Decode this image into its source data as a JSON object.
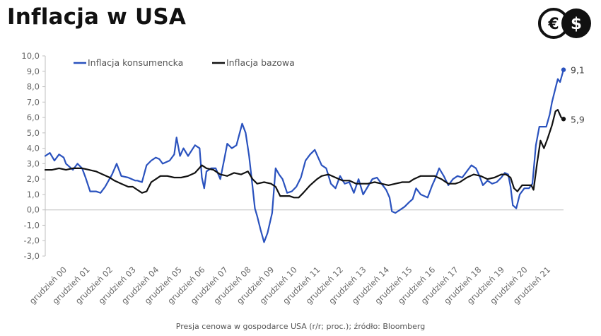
{
  "title": "Inflacja w USA",
  "source_note": "Presja cenowa w gospodarce USA (r/r; proc.); źródło: Bloomberg",
  "colors": {
    "consumer": "#2a52be",
    "core": "#111111",
    "axis": "#bfbfbf"
  },
  "logo": {
    "icons": [
      "euro-icon",
      "dollar-icon"
    ],
    "symbols": [
      "€",
      "$"
    ]
  },
  "chart_data": {
    "type": "line",
    "title": "Inflacja w USA",
    "ylim": [
      -3,
      10
    ],
    "yticks": [
      "-3,0",
      "-2,0",
      "-1,0",
      "0,0",
      "1,0",
      "2,0",
      "3,0",
      "4,0",
      "5,0",
      "6,0",
      "7,0",
      "8,0",
      "9,0",
      "10,0"
    ],
    "xticks": [
      "grudzień 00",
      "grudzień 01",
      "grudzień 02",
      "grudzień 03",
      "grudzień 04",
      "grudzień 05",
      "grudzień 06",
      "grudzień 07",
      "grudzień 08",
      "grudzień 09",
      "grudzień 10",
      "grudzień 11",
      "grudzień 12",
      "grudzień 13",
      "grudzień 14",
      "grudzień 15",
      "grudzień 16",
      "grudzień 17",
      "grudzień 18",
      "grudzień 19",
      "grudzień 20",
      "grudzień 21"
    ],
    "x_start": "2000-01",
    "x_end": "2022-06",
    "legend_position": "top-left",
    "series": [
      {
        "name": "Inflacja konsumencka",
        "end_label": "9,1",
        "points": [
          [
            2000.0,
            3.5
          ],
          [
            2000.2,
            3.7
          ],
          [
            2000.4,
            3.2
          ],
          [
            2000.6,
            3.6
          ],
          [
            2000.8,
            3.4
          ],
          [
            2000.9,
            3.0
          ],
          [
            2001.2,
            2.6
          ],
          [
            2001.4,
            3.0
          ],
          [
            2001.6,
            2.7
          ],
          [
            2001.75,
            2.1
          ],
          [
            2001.95,
            1.2
          ],
          [
            2002.2,
            1.2
          ],
          [
            2002.4,
            1.1
          ],
          [
            2002.6,
            1.5
          ],
          [
            2002.9,
            2.3
          ],
          [
            2003.1,
            3.0
          ],
          [
            2003.3,
            2.2
          ],
          [
            2003.6,
            2.1
          ],
          [
            2003.9,
            1.9
          ],
          [
            2004.0,
            1.9
          ],
          [
            2004.2,
            1.8
          ],
          [
            2004.4,
            2.9
          ],
          [
            2004.6,
            3.2
          ],
          [
            2004.8,
            3.4
          ],
          [
            2004.95,
            3.3
          ],
          [
            2005.1,
            3.0
          ],
          [
            2005.4,
            3.2
          ],
          [
            2005.6,
            3.6
          ],
          [
            2005.7,
            4.7
          ],
          [
            2005.85,
            3.5
          ],
          [
            2006.0,
            4.0
          ],
          [
            2006.2,
            3.5
          ],
          [
            2006.5,
            4.2
          ],
          [
            2006.7,
            4.0
          ],
          [
            2006.8,
            2.1
          ],
          [
            2006.9,
            1.4
          ],
          [
            2007.0,
            2.5
          ],
          [
            2007.2,
            2.7
          ],
          [
            2007.4,
            2.7
          ],
          [
            2007.6,
            2.0
          ],
          [
            2007.8,
            3.5
          ],
          [
            2007.9,
            4.3
          ],
          [
            2008.1,
            4.0
          ],
          [
            2008.3,
            4.2
          ],
          [
            2008.55,
            5.6
          ],
          [
            2008.7,
            5.0
          ],
          [
            2008.85,
            3.5
          ],
          [
            2009.0,
            1.5
          ],
          [
            2009.1,
            0.1
          ],
          [
            2009.2,
            -0.4
          ],
          [
            2009.35,
            -1.3
          ],
          [
            2009.5,
            -2.1
          ],
          [
            2009.65,
            -1.5
          ],
          [
            2009.85,
            -0.2
          ],
          [
            2010.0,
            2.7
          ],
          [
            2010.15,
            2.3
          ],
          [
            2010.3,
            2.0
          ],
          [
            2010.5,
            1.1
          ],
          [
            2010.7,
            1.2
          ],
          [
            2010.9,
            1.5
          ],
          [
            2011.1,
            2.1
          ],
          [
            2011.3,
            3.2
          ],
          [
            2011.5,
            3.6
          ],
          [
            2011.7,
            3.9
          ],
          [
            2011.85,
            3.4
          ],
          [
            2012.0,
            2.9
          ],
          [
            2012.2,
            2.7
          ],
          [
            2012.4,
            1.7
          ],
          [
            2012.6,
            1.4
          ],
          [
            2012.8,
            2.2
          ],
          [
            2013.0,
            1.7
          ],
          [
            2013.2,
            1.8
          ],
          [
            2013.4,
            1.1
          ],
          [
            2013.6,
            2.0
          ],
          [
            2013.8,
            1.0
          ],
          [
            2014.0,
            1.5
          ],
          [
            2014.2,
            2.0
          ],
          [
            2014.4,
            2.1
          ],
          [
            2014.6,
            1.7
          ],
          [
            2014.8,
            1.3
          ],
          [
            2014.95,
            0.8
          ],
          [
            2015.05,
            -0.1
          ],
          [
            2015.2,
            -0.2
          ],
          [
            2015.4,
            0.0
          ],
          [
            2015.6,
            0.2
          ],
          [
            2015.8,
            0.5
          ],
          [
            2015.95,
            0.7
          ],
          [
            2016.1,
            1.4
          ],
          [
            2016.3,
            1.0
          ],
          [
            2016.6,
            0.8
          ],
          [
            2016.8,
            1.6
          ],
          [
            2016.95,
            2.1
          ],
          [
            2017.1,
            2.7
          ],
          [
            2017.3,
            2.2
          ],
          [
            2017.5,
            1.6
          ],
          [
            2017.7,
            2.0
          ],
          [
            2017.9,
            2.2
          ],
          [
            2018.1,
            2.1
          ],
          [
            2018.3,
            2.5
          ],
          [
            2018.5,
            2.9
          ],
          [
            2018.7,
            2.7
          ],
          [
            2018.85,
            2.2
          ],
          [
            2019.0,
            1.6
          ],
          [
            2019.2,
            1.9
          ],
          [
            2019.4,
            1.7
          ],
          [
            2019.6,
            1.8
          ],
          [
            2019.8,
            2.1
          ],
          [
            2019.95,
            2.4
          ],
          [
            2020.1,
            2.3
          ],
          [
            2020.2,
            1.5
          ],
          [
            2020.3,
            0.3
          ],
          [
            2020.45,
            0.1
          ],
          [
            2020.6,
            1.0
          ],
          [
            2020.8,
            1.4
          ],
          [
            2021.0,
            1.4
          ],
          [
            2021.15,
            1.7
          ],
          [
            2021.3,
            4.2
          ],
          [
            2021.45,
            5.4
          ],
          [
            2021.6,
            5.4
          ],
          [
            2021.75,
            5.4
          ],
          [
            2021.9,
            6.2
          ],
          [
            2022.0,
            7.0
          ],
          [
            2022.15,
            7.9
          ],
          [
            2022.25,
            8.5
          ],
          [
            2022.35,
            8.3
          ],
          [
            2022.5,
            9.1
          ]
        ]
      },
      {
        "name": "Inflacja bazowa",
        "end_label": "5,9",
        "points": [
          [
            2000.0,
            2.6
          ],
          [
            2000.3,
            2.6
          ],
          [
            2000.6,
            2.7
          ],
          [
            2000.9,
            2.6
          ],
          [
            2001.2,
            2.7
          ],
          [
            2001.6,
            2.7
          ],
          [
            2001.9,
            2.6
          ],
          [
            2002.2,
            2.5
          ],
          [
            2002.5,
            2.3
          ],
          [
            2002.8,
            2.1
          ],
          [
            2003.0,
            1.9
          ],
          [
            2003.3,
            1.7
          ],
          [
            2003.6,
            1.5
          ],
          [
            2003.8,
            1.5
          ],
          [
            2004.0,
            1.3
          ],
          [
            2004.2,
            1.1
          ],
          [
            2004.4,
            1.2
          ],
          [
            2004.6,
            1.8
          ],
          [
            2004.8,
            2.0
          ],
          [
            2005.0,
            2.2
          ],
          [
            2005.3,
            2.2
          ],
          [
            2005.6,
            2.1
          ],
          [
            2005.9,
            2.1
          ],
          [
            2006.2,
            2.2
          ],
          [
            2006.5,
            2.4
          ],
          [
            2006.8,
            2.9
          ],
          [
            2007.0,
            2.7
          ],
          [
            2007.3,
            2.6
          ],
          [
            2007.6,
            2.3
          ],
          [
            2007.9,
            2.2
          ],
          [
            2008.2,
            2.4
          ],
          [
            2008.5,
            2.3
          ],
          [
            2008.8,
            2.5
          ],
          [
            2009.0,
            2.0
          ],
          [
            2009.2,
            1.7
          ],
          [
            2009.5,
            1.8
          ],
          [
            2009.8,
            1.7
          ],
          [
            2010.0,
            1.5
          ],
          [
            2010.2,
            0.9
          ],
          [
            2010.6,
            0.9
          ],
          [
            2010.8,
            0.8
          ],
          [
            2011.0,
            0.8
          ],
          [
            2011.2,
            1.1
          ],
          [
            2011.5,
            1.6
          ],
          [
            2011.8,
            2.0
          ],
          [
            2012.0,
            2.2
          ],
          [
            2012.3,
            2.3
          ],
          [
            2012.6,
            2.1
          ],
          [
            2012.9,
            1.9
          ],
          [
            2013.2,
            1.9
          ],
          [
            2013.5,
            1.7
          ],
          [
            2013.8,
            1.7
          ],
          [
            2014.0,
            1.7
          ],
          [
            2014.3,
            1.8
          ],
          [
            2014.6,
            1.7
          ],
          [
            2014.9,
            1.6
          ],
          [
            2015.2,
            1.7
          ],
          [
            2015.5,
            1.8
          ],
          [
            2015.8,
            1.8
          ],
          [
            2016.0,
            2.0
          ],
          [
            2016.3,
            2.2
          ],
          [
            2016.6,
            2.2
          ],
          [
            2016.9,
            2.2
          ],
          [
            2017.2,
            2.0
          ],
          [
            2017.5,
            1.7
          ],
          [
            2017.8,
            1.7
          ],
          [
            2018.0,
            1.8
          ],
          [
            2018.3,
            2.1
          ],
          [
            2018.6,
            2.3
          ],
          [
            2018.9,
            2.2
          ],
          [
            2019.2,
            2.0
          ],
          [
            2019.5,
            2.1
          ],
          [
            2019.8,
            2.3
          ],
          [
            2020.0,
            2.3
          ],
          [
            2020.2,
            2.1
          ],
          [
            2020.35,
            1.4
          ],
          [
            2020.5,
            1.2
          ],
          [
            2020.7,
            1.6
          ],
          [
            2020.9,
            1.6
          ],
          [
            2021.1,
            1.6
          ],
          [
            2021.2,
            1.3
          ],
          [
            2021.35,
            3.0
          ],
          [
            2021.5,
            4.5
          ],
          [
            2021.65,
            4.0
          ],
          [
            2021.8,
            4.6
          ],
          [
            2022.0,
            5.5
          ],
          [
            2022.15,
            6.4
          ],
          [
            2022.25,
            6.5
          ],
          [
            2022.4,
            6.0
          ],
          [
            2022.5,
            5.9
          ]
        ]
      }
    ]
  }
}
